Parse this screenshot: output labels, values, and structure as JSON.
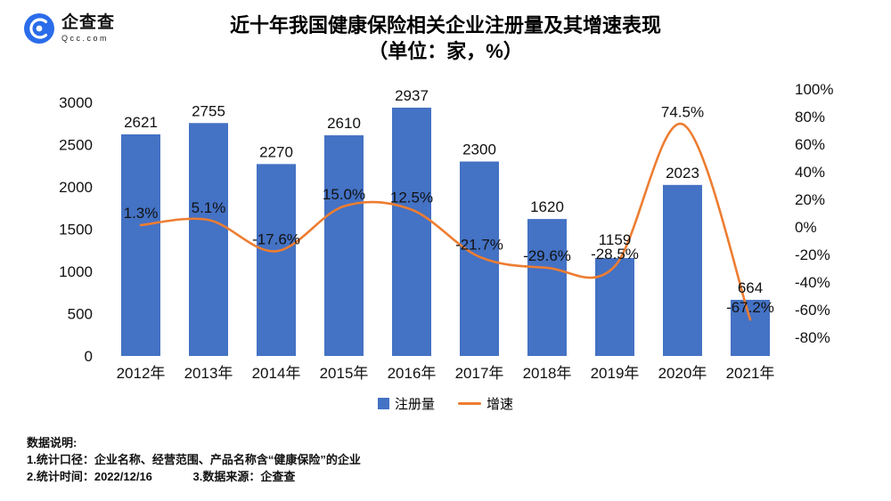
{
  "logo": {
    "name": "企查查",
    "domain": "Qcc.com"
  },
  "title": {
    "line1": "近十年我国健康保险相关企业注册量及其增速表现",
    "line2": "（单位：家，%）"
  },
  "chart_data": {
    "type": "bar",
    "subtype": "bar+line combo",
    "categories": [
      "2012年",
      "2013年",
      "2014年",
      "2015年",
      "2016年",
      "2017年",
      "2018年",
      "2019年",
      "2020年",
      "2021年"
    ],
    "series": [
      {
        "name": "注册量",
        "type": "bar",
        "color": "#4472c4",
        "values": [
          2621,
          2755,
          2270,
          2610,
          2937,
          2300,
          1620,
          1159,
          2023,
          664
        ]
      },
      {
        "name": "增速",
        "type": "line",
        "color": "#ed7d31",
        "values": [
          1.3,
          5.1,
          -17.6,
          15.0,
          12.5,
          -21.7,
          -29.6,
          -28.5,
          74.5,
          -67.2
        ],
        "labels": [
          "1.3%",
          "5.1%",
          "-17.6%",
          "15.0%",
          "12.5%",
          "-21.7%",
          "-29.6%",
          "-28.5%",
          "74.5%",
          "-67.2%"
        ]
      }
    ],
    "left_axis": {
      "min": 0,
      "max": 3000,
      "ticks": [
        0,
        500,
        1000,
        1500,
        2000,
        2500,
        3000
      ]
    },
    "right_axis": {
      "min": -80,
      "max": 100,
      "ticks": [
        100,
        80,
        60,
        40,
        20,
        0,
        -20,
        -40,
        -60,
        -80
      ],
      "tick_labels": [
        "100%",
        "80%",
        "60%",
        "40%",
        "20%",
        "0%",
        "-20%",
        "-40%",
        "-60%",
        "-80%"
      ]
    },
    "legend": [
      {
        "label": "注册量",
        "swatch": "bar",
        "color": "#4472c4"
      },
      {
        "label": "增速",
        "swatch": "line",
        "color": "#ed7d31"
      }
    ],
    "grid": false,
    "legend_position": "bottom"
  },
  "footer": {
    "heading": "数据说明:",
    "line1": "1.统计口径：企业名称、经营范围、产品名称含“健康保险”的企业",
    "line2_left": "2.统计时间：2022/12/16",
    "line2_right": "3.数据来源：企查查"
  }
}
